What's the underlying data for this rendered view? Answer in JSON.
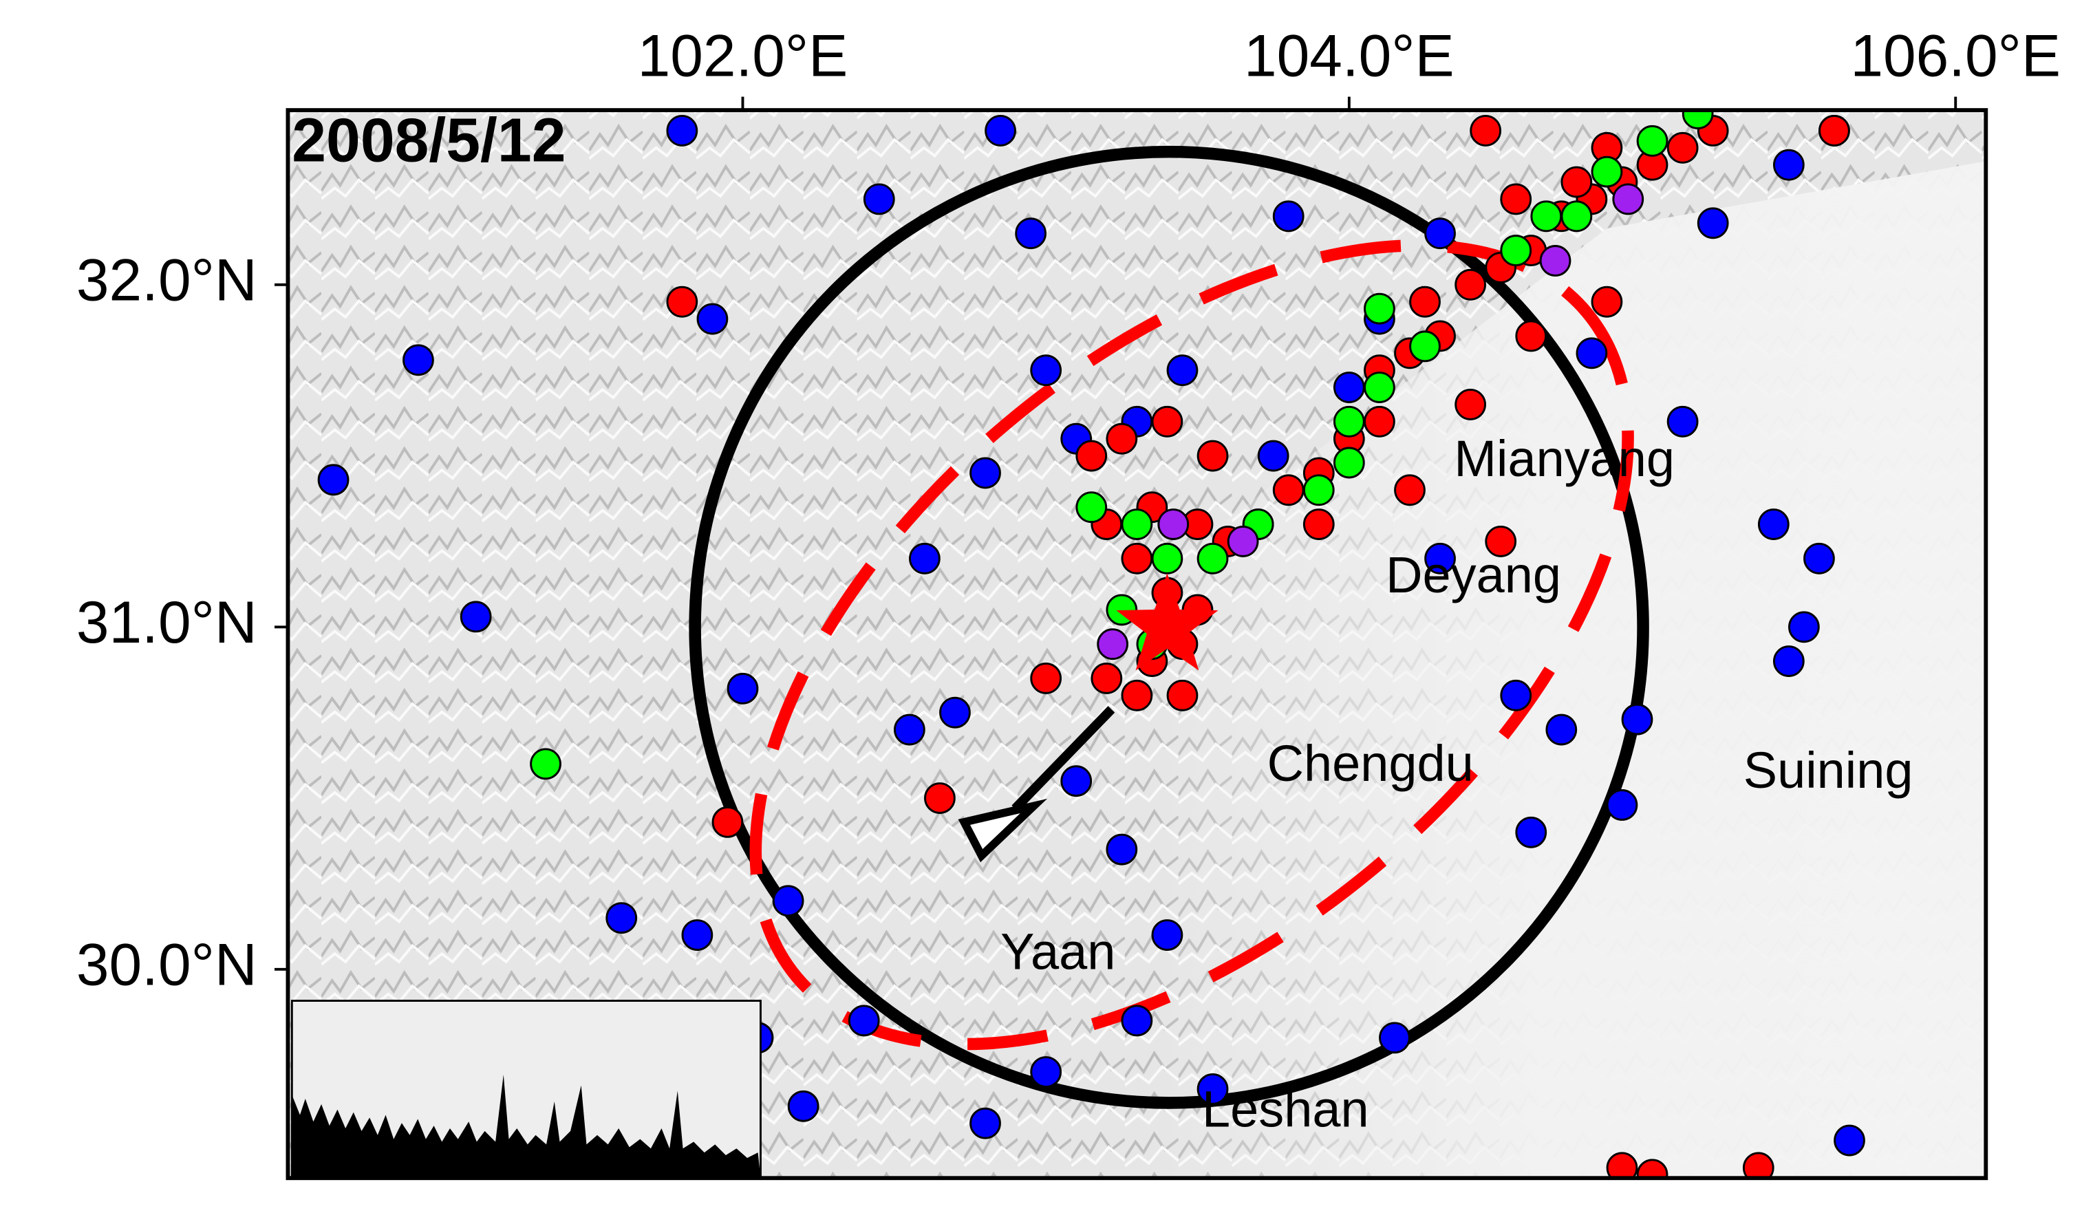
{
  "map": {
    "date_label": "2008/5/12",
    "xlim": [
      100.5,
      106.1
    ],
    "ylim": [
      29.39,
      32.51
    ],
    "xticks": [
      {
        "value": 102,
        "label": "102.0°E"
      },
      {
        "value": 104,
        "label": "104.0°E"
      },
      {
        "value": 106,
        "label": "106.0°E"
      }
    ],
    "yticks": [
      {
        "value": 32,
        "label": "32.0°N"
      },
      {
        "value": 31,
        "label": "31.0°N"
      },
      {
        "value": 30,
        "label": "30.0°N"
      }
    ],
    "cities": [
      {
        "name": "Mianyang",
        "lon": 104.71,
        "lat": 31.48
      },
      {
        "name": "Deyang",
        "lon": 104.41,
        "lat": 31.14
      },
      {
        "name": "Chengdu",
        "lon": 104.07,
        "lat": 30.59
      },
      {
        "name": "Suining",
        "lon": 105.58,
        "lat": 30.57
      },
      {
        "name": "Yaan",
        "lon": 103.04,
        "lat": 30.04
      },
      {
        "name": "Leshan",
        "lon": 103.79,
        "lat": 29.58
      }
    ],
    "events": [
      {
        "color": "#0000ff",
        "lon": [
          101.8,
          100.93,
          100.65,
          101.12,
          101.9,
          102.0,
          102.15,
          101.6,
          101.85,
          102.05,
          102.2,
          102.7,
          102.55,
          102.8,
          102.95,
          103.0,
          102.45,
          102.6,
          102.4,
          103.1,
          103.25,
          103.4,
          103.3,
          103.0,
          102.8,
          103.8,
          104.8,
          105.1,
          105.4,
          105.55,
          105.5,
          105.45,
          104.6,
          104.55,
          104.7,
          104.3,
          104.95,
          104.9,
          105.45,
          105.6,
          103.55,
          104.15,
          103.45,
          103.3,
          103.1,
          105.2,
          105.65,
          102.85,
          104.1,
          104.3,
          104.0,
          103.75
        ],
        "lat": [
          32.45,
          31.78,
          31.43,
          31.03,
          31.9,
          30.82,
          30.2,
          30.15,
          30.1,
          29.8,
          29.6,
          30.75,
          30.7,
          31.45,
          32.15,
          31.75,
          32.25,
          31.2,
          29.85,
          30.55,
          30.35,
          30.1,
          29.85,
          29.7,
          29.55,
          32.2,
          31.8,
          31.6,
          31.3,
          31.2,
          31.0,
          30.9,
          30.4,
          30.8,
          30.7,
          31.2,
          30.73,
          30.48,
          32.35,
          32.45,
          29.65,
          29.8,
          31.75,
          31.6,
          31.55,
          32.18,
          29.5,
          32.45,
          31.9,
          32.15,
          31.7,
          31.5
        ]
      },
      {
        "color": "#ff0000",
        "lon": [
          103.2,
          103.3,
          103.35,
          103.45,
          103.5,
          103.4,
          103.3,
          103.2,
          103.35,
          103.5,
          103.6,
          103.7,
          103.8,
          103.9,
          104.0,
          104.1,
          104.1,
          104.2,
          104.3,
          104.25,
          104.4,
          104.5,
          104.6,
          104.7,
          104.8,
          104.9,
          105.0,
          105.1,
          105.2,
          104.85,
          104.75,
          103.15,
          103.25,
          103.4,
          103.55,
          103.9,
          104.2,
          104.4,
          104.6,
          104.85,
          104.5,
          102.65,
          101.8,
          101.95,
          103.0,
          104.45,
          105.6,
          104.9,
          105.0,
          105.35,
          103.45,
          104.55
        ],
        "lat": [
          30.85,
          30.8,
          30.9,
          30.95,
          31.05,
          31.1,
          31.2,
          31.3,
          31.35,
          31.3,
          31.25,
          31.3,
          31.4,
          31.45,
          31.55,
          31.6,
          31.75,
          31.8,
          31.85,
          31.95,
          32.0,
          32.05,
          32.1,
          32.2,
          32.25,
          32.3,
          32.35,
          32.4,
          32.45,
          32.4,
          32.3,
          31.5,
          31.55,
          31.6,
          31.5,
          31.3,
          31.4,
          31.65,
          31.85,
          31.95,
          31.25,
          30.5,
          31.95,
          30.43,
          30.85,
          32.45,
          32.45,
          29.42,
          29.4,
          29.42,
          30.8,
          32.25
        ]
      },
      {
        "color": "#00ff00",
        "lon": [
          103.15,
          103.3,
          103.4,
          103.55,
          103.7,
          103.9,
          104.0,
          104.0,
          104.1,
          104.25,
          104.1,
          104.55,
          104.65,
          104.75,
          104.85,
          105.0,
          105.15,
          103.35,
          101.35,
          103.25
        ],
        "lat": [
          31.35,
          31.3,
          31.2,
          31.2,
          31.3,
          31.4,
          31.48,
          31.6,
          31.7,
          31.82,
          31.93,
          32.1,
          32.2,
          32.2,
          32.33,
          32.42,
          32.5,
          30.95,
          30.6,
          31.05
        ]
      },
      {
        "color": "#a020f0",
        "lon": [
          103.22,
          103.42,
          103.65,
          104.68,
          104.92
        ],
        "lat": [
          30.95,
          31.3,
          31.25,
          32.07,
          32.25
        ]
      }
    ],
    "epicenter": {
      "lon": 103.4,
      "lat": 31.0,
      "color": "#ff0000"
    }
  }
}
